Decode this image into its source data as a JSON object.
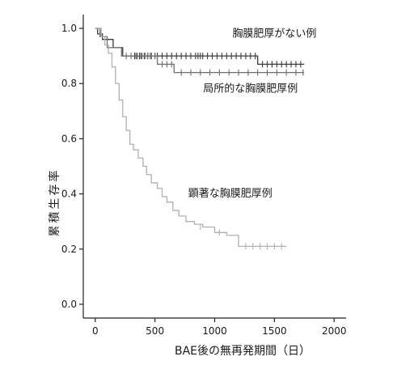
{
  "chart_data": {
    "type": "line",
    "title": "",
    "xlabel": "BAE後の無再発期間（日）",
    "ylabel": "累積生存率",
    "xlim": [
      -100,
      2100
    ],
    "ylim": [
      -0.05,
      1.05
    ],
    "xticks": [
      0,
      500,
      1000,
      1500,
      2000
    ],
    "yticks": [
      0.0,
      0.2,
      0.4,
      0.6,
      0.8,
      1.0
    ],
    "xtick_labels": [
      "0",
      "500",
      "1000",
      "1500",
      "2000"
    ],
    "ytick_labels": [
      "0.0",
      "0.2",
      "0.4",
      "0.6",
      "0.8",
      "1.0"
    ],
    "grid": false,
    "legend": "none",
    "step": true,
    "series": [
      {
        "name": "胸膜肥厚がない例",
        "color": "#3a3a3a",
        "x": [
          0,
          20,
          60,
          150,
          230,
          1360,
          1750
        ],
        "y": [
          1.0,
          0.98,
          0.96,
          0.93,
          0.9,
          0.87,
          0.87
        ],
        "censored_x": [
          330,
          350,
          370,
          390,
          410,
          440,
          470,
          500,
          520,
          560,
          600,
          640,
          680,
          720,
          760,
          800,
          840,
          860,
          880,
          900,
          940,
          980,
          1020,
          1060,
          1100,
          1140,
          1180,
          1220,
          1260,
          1300,
          1340,
          1400,
          1440,
          1480,
          1520,
          1560,
          1600,
          1640,
          1680,
          1720
        ],
        "censored_y": [
          0.9,
          0.9,
          0.9,
          0.9,
          0.9,
          0.9,
          0.9,
          0.9,
          0.9,
          0.9,
          0.9,
          0.9,
          0.9,
          0.9,
          0.9,
          0.9,
          0.9,
          0.9,
          0.9,
          0.9,
          0.9,
          0.9,
          0.9,
          0.9,
          0.9,
          0.9,
          0.9,
          0.9,
          0.9,
          0.9,
          0.9,
          0.87,
          0.87,
          0.87,
          0.87,
          0.87,
          0.87,
          0.87,
          0.87,
          0.87
        ]
      },
      {
        "name": "局所的な胸膜肥厚例",
        "color": "#6e6e6e",
        "x": [
          0,
          40,
          100,
          220,
          520,
          660,
          1750
        ],
        "y": [
          1.0,
          0.97,
          0.93,
          0.9,
          0.87,
          0.84,
          0.84
        ],
        "censored_x": [
          260,
          300,
          340,
          380,
          420,
          460,
          500,
          560,
          600,
          640,
          720,
          800,
          880,
          960,
          1040,
          1120,
          1200,
          1280,
          1360,
          1440,
          1520,
          1600,
          1680,
          1740
        ],
        "censored_y": [
          0.9,
          0.9,
          0.9,
          0.9,
          0.9,
          0.9,
          0.9,
          0.87,
          0.87,
          0.87,
          0.84,
          0.84,
          0.84,
          0.84,
          0.84,
          0.84,
          0.84,
          0.84,
          0.84,
          0.84,
          0.84,
          0.84,
          0.84,
          0.84
        ]
      },
      {
        "name": "顕著な胸膜肥厚例",
        "color": "#b0b0b0",
        "x": [
          0,
          50,
          80,
          110,
          140,
          170,
          200,
          230,
          260,
          290,
          320,
          360,
          400,
          430,
          470,
          520,
          560,
          600,
          650,
          700,
          760,
          830,
          900,
          1000,
          1100,
          1200,
          1600
        ],
        "y": [
          1.0,
          0.97,
          0.94,
          0.91,
          0.86,
          0.8,
          0.74,
          0.68,
          0.63,
          0.58,
          0.56,
          0.53,
          0.5,
          0.47,
          0.44,
          0.42,
          0.39,
          0.37,
          0.34,
          0.32,
          0.3,
          0.29,
          0.28,
          0.26,
          0.25,
          0.21,
          0.21
        ],
        "censored_x": [
          880,
          1040,
          1260,
          1320,
          1380,
          1440,
          1500,
          1560
        ],
        "censored_y": [
          0.28,
          0.26,
          0.21,
          0.21,
          0.21,
          0.21,
          0.21,
          0.21
        ]
      }
    ],
    "annotations": [
      {
        "text": "胸膜肥厚がない例",
        "series": 0,
        "x": 1500,
        "y": 0.97
      },
      {
        "text": "局所的な胸膜肥厚例",
        "series": 1,
        "x": 1300,
        "y": 0.77
      },
      {
        "text": "顕著な胸膜肥厚例",
        "series": 2,
        "x": 1130,
        "y": 0.39
      }
    ]
  }
}
